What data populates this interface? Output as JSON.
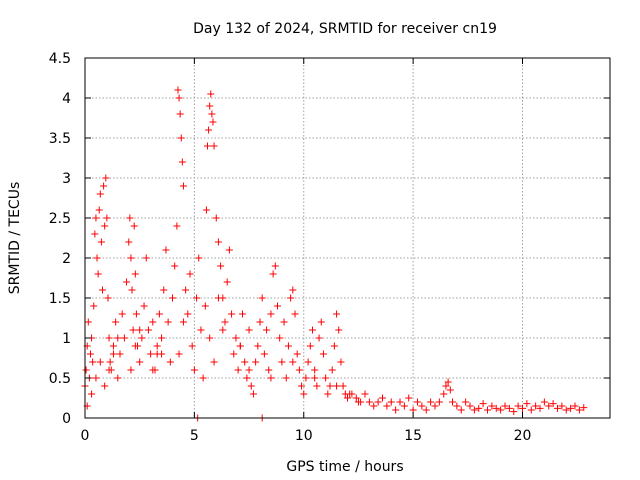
{
  "chart_data": {
    "type": "scatter",
    "title": "Day 132 of 2024, SRMTID for receiver cn19",
    "xlabel": "GPS time / hours",
    "ylabel": "SRMTID / TECUs",
    "xlim": [
      0,
      24
    ],
    "ylim": [
      0,
      4.5
    ],
    "xticks": [
      0,
      5,
      10,
      15,
      20
    ],
    "xtick_labels": [
      "0",
      "5",
      "10",
      "15",
      "20"
    ],
    "yticks": [
      0,
      0.5,
      1,
      1.5,
      2,
      2.5,
      3,
      3.5,
      4,
      4.5
    ],
    "ytick_labels": [
      "0",
      "0.5",
      "1",
      "1.5",
      "2",
      "2.5",
      "3",
      "3.5",
      "4",
      "4.5"
    ],
    "grid": true,
    "marker": "plus",
    "color": "#ff0000",
    "series": [
      {
        "name": "SRMTID",
        "x": [
          0.0,
          0.05,
          0.1,
          0.15,
          0.2,
          0.25,
          0.3,
          0.35,
          0.4,
          0.45,
          0.5,
          0.55,
          0.6,
          0.65,
          0.7,
          0.75,
          0.8,
          0.85,
          0.9,
          0.95,
          1.0,
          1.05,
          1.1,
          1.15,
          1.2,
          1.3,
          1.4,
          1.5,
          1.6,
          1.7,
          1.8,
          1.9,
          2.0,
          2.05,
          2.1,
          2.15,
          2.2,
          2.25,
          2.3,
          2.35,
          2.4,
          2.5,
          2.6,
          2.7,
          2.8,
          2.9,
          3.0,
          3.1,
          3.2,
          3.3,
          3.4,
          3.5,
          3.6,
          3.7,
          3.8,
          3.9,
          4.0,
          4.1,
          4.2,
          4.25,
          4.3,
          4.35,
          4.4,
          4.45,
          4.5,
          4.6,
          4.7,
          4.8,
          4.9,
          5.0,
          5.1,
          5.2,
          5.3,
          5.4,
          5.5,
          5.55,
          5.6,
          5.65,
          5.7,
          5.75,
          5.8,
          5.85,
          5.9,
          6.0,
          6.1,
          6.2,
          6.3,
          6.4,
          6.5,
          6.6,
          6.7,
          6.8,
          6.9,
          7.0,
          7.1,
          7.2,
          7.3,
          7.4,
          7.5,
          7.6,
          7.7,
          7.8,
          7.9,
          8.0,
          8.1,
          8.2,
          8.3,
          8.4,
          8.5,
          8.6,
          8.7,
          8.8,
          8.9,
          9.0,
          9.1,
          9.2,
          9.3,
          9.4,
          9.5,
          9.6,
          9.7,
          9.8,
          9.9,
          10.0,
          10.1,
          10.2,
          10.3,
          10.4,
          10.5,
          10.6,
          10.7,
          10.8,
          10.9,
          11.0,
          11.1,
          11.2,
          11.3,
          11.4,
          11.5,
          11.6,
          11.7,
          11.8,
          11.9,
          12.0,
          12.2,
          12.4,
          12.6,
          12.8,
          13.0,
          13.2,
          13.4,
          13.6,
          13.8,
          14.0,
          14.2,
          14.4,
          14.6,
          14.8,
          15.0,
          15.2,
          15.4,
          15.6,
          15.8,
          16.0,
          16.2,
          16.4,
          16.5,
          16.6,
          16.7,
          16.8,
          17.0,
          17.2,
          17.4,
          17.6,
          17.8,
          18.0,
          18.2,
          18.4,
          18.6,
          18.8,
          19.0,
          19.2,
          19.4,
          19.6,
          19.8,
          20.0,
          20.2,
          20.4,
          20.6,
          20.8,
          21.0,
          21.2,
          21.4,
          21.6,
          21.8,
          22.0,
          22.2,
          22.4,
          22.6,
          22.8,
          0.1,
          0.3,
          0.5,
          0.7,
          0.9,
          1.1,
          1.3,
          1.5,
          2.1,
          2.3,
          2.5,
          3.1,
          3.3,
          3.5,
          4.3,
          4.5,
          5.7,
          5.9,
          6.1,
          6.3,
          7.1,
          7.5,
          8.5,
          9.5,
          10.5,
          11.5,
          12.1,
          12.5,
          5.15,
          8.1
        ],
        "y": [
          0.4,
          0.6,
          0.9,
          1.2,
          0.5,
          0.8,
          1.0,
          0.7,
          1.4,
          2.3,
          2.5,
          2.0,
          1.8,
          2.6,
          2.8,
          2.2,
          1.6,
          2.9,
          2.4,
          3.0,
          2.5,
          1.5,
          1.0,
          0.7,
          0.6,
          0.9,
          1.2,
          0.5,
          0.8,
          1.3,
          1.0,
          1.7,
          2.2,
          2.5,
          2.0,
          1.6,
          1.1,
          2.4,
          1.8,
          1.3,
          0.9,
          0.7,
          1.0,
          1.4,
          2.0,
          1.1,
          0.8,
          1.2,
          0.6,
          0.9,
          1.3,
          0.8,
          1.6,
          2.1,
          1.2,
          0.7,
          1.5,
          1.9,
          2.4,
          4.1,
          4.0,
          3.8,
          3.5,
          3.2,
          2.9,
          1.6,
          1.3,
          1.8,
          0.9,
          0.6,
          1.5,
          2.0,
          1.1,
          0.5,
          1.4,
          2.6,
          3.4,
          3.6,
          3.9,
          4.05,
          3.8,
          3.7,
          3.4,
          2.5,
          2.2,
          1.9,
          1.5,
          1.2,
          1.7,
          2.1,
          1.3,
          0.8,
          1.0,
          0.6,
          0.9,
          1.3,
          0.7,
          0.5,
          1.1,
          0.4,
          0.3,
          0.7,
          0.9,
          1.2,
          1.5,
          0.8,
          1.1,
          0.6,
          1.3,
          1.8,
          1.9,
          1.4,
          1.0,
          0.7,
          1.2,
          0.5,
          0.9,
          1.5,
          1.6,
          1.3,
          0.8,
          0.6,
          0.4,
          0.3,
          0.5,
          0.7,
          0.9,
          1.1,
          0.6,
          0.4,
          1.0,
          1.2,
          0.8,
          0.5,
          0.3,
          0.4,
          0.6,
          0.9,
          1.3,
          1.1,
          0.7,
          0.4,
          0.3,
          0.25,
          0.3,
          0.25,
          0.2,
          0.3,
          0.2,
          0.15,
          0.2,
          0.25,
          0.15,
          0.2,
          0.1,
          0.2,
          0.15,
          0.25,
          0.1,
          0.2,
          0.15,
          0.1,
          0.2,
          0.15,
          0.2,
          0.3,
          0.4,
          0.45,
          0.35,
          0.2,
          0.15,
          0.1,
          0.2,
          0.15,
          0.1,
          0.12,
          0.18,
          0.1,
          0.15,
          0.12,
          0.1,
          0.15,
          0.12,
          0.08,
          0.15,
          0.12,
          0.18,
          0.1,
          0.15,
          0.12,
          0.2,
          0.15,
          0.18,
          0.12,
          0.15,
          0.1,
          0.12,
          0.15,
          0.1,
          0.13,
          0.15,
          0.3,
          0.5,
          0.7,
          0.4,
          0.6,
          0.8,
          1.0,
          0.6,
          0.9,
          1.1,
          0.6,
          0.8,
          1.0,
          0.8,
          1.2,
          1.0,
          0.7,
          1.5,
          1.1,
          0.9,
          0.6,
          0.5,
          0.7,
          0.5,
          0.4,
          0.3,
          0.2,
          0.0,
          0.0
        ]
      }
    ]
  }
}
